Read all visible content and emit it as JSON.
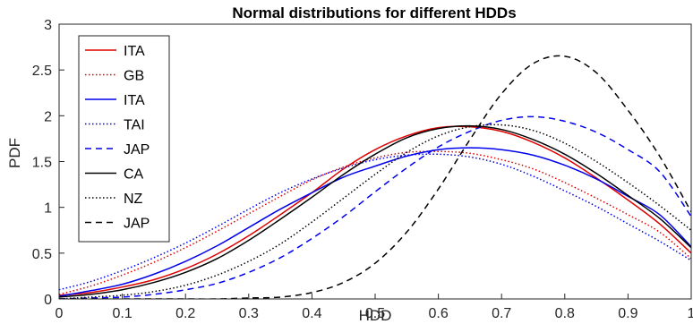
{
  "chart_data": {
    "type": "line",
    "title": "Normal distributions for different HDDs",
    "xlabel": "HDD",
    "ylabel": "PDF",
    "xlim": [
      0,
      1
    ],
    "ylim": [
      0,
      3
    ],
    "xticks": [
      "0",
      "0.1",
      "0.2",
      "0.3",
      "0.4",
      "0.5",
      "0.6",
      "0.7",
      "0.8",
      "0.9",
      "1"
    ],
    "yticks": [
      "0",
      "0.5",
      "1",
      "1.5",
      "2",
      "2.5",
      "3"
    ],
    "xtick_values": [
      0,
      0.1,
      0.2,
      0.3,
      0.4,
      0.5,
      0.6,
      0.7,
      0.8,
      0.9,
      1
    ],
    "ytick_values": [
      0,
      0.5,
      1,
      1.5,
      2,
      2.5,
      3
    ],
    "grid": false,
    "legend_position": "top-left",
    "x": [
      0,
      0.05,
      0.1,
      0.15,
      0.2,
      0.25,
      0.3,
      0.35,
      0.4,
      0.45,
      0.5,
      0.55,
      0.6,
      0.65,
      0.7,
      0.75,
      0.8,
      0.85,
      0.9,
      0.95,
      1
    ],
    "series": [
      {
        "name": "ITA",
        "color": "#e00000",
        "dash": "solid",
        "values": [
          0.04,
          0.07,
          0.13,
          0.21,
          0.33,
          0.49,
          0.69,
          0.92,
          1.16,
          1.42,
          1.63,
          1.78,
          1.87,
          1.88,
          1.83,
          1.71,
          1.54,
          1.32,
          1.08,
          0.82,
          0.5
        ]
      },
      {
        "name": "GB",
        "color": "#e00000",
        "dash": "dotted",
        "values": [
          0.05,
          0.14,
          0.26,
          0.4,
          0.56,
          0.74,
          0.93,
          1.12,
          1.3,
          1.44,
          1.54,
          1.6,
          1.61,
          1.59,
          1.52,
          1.42,
          1.27,
          1.1,
          0.92,
          0.73,
          0.44
        ]
      },
      {
        "name": "ITA",
        "color": "#0000ee",
        "dash": "solid",
        "values": [
          0.03,
          0.09,
          0.16,
          0.27,
          0.41,
          0.58,
          0.78,
          0.98,
          1.16,
          1.33,
          1.45,
          1.56,
          1.63,
          1.65,
          1.63,
          1.57,
          1.46,
          1.31,
          1.12,
          0.92,
          0.57
        ]
      },
      {
        "name": "TAI",
        "color": "#0000ee",
        "dash": "dotted",
        "values": [
          0.1,
          0.19,
          0.31,
          0.45,
          0.61,
          0.79,
          0.98,
          1.16,
          1.31,
          1.43,
          1.52,
          1.57,
          1.58,
          1.55,
          1.47,
          1.34,
          1.18,
          1.01,
          0.82,
          0.63,
          0.42
        ]
      },
      {
        "name": "JAP",
        "color": "#0000ee",
        "dash": "dashed",
        "values": [
          0.0,
          0.01,
          0.02,
          0.05,
          0.1,
          0.17,
          0.29,
          0.45,
          0.66,
          0.9,
          1.17,
          1.43,
          1.66,
          1.83,
          1.95,
          1.99,
          1.94,
          1.82,
          1.63,
          1.39,
          0.9
        ]
      },
      {
        "name": "CA",
        "color": "#000000",
        "dash": "solid",
        "values": [
          0.02,
          0.05,
          0.1,
          0.18,
          0.29,
          0.44,
          0.64,
          0.87,
          1.11,
          1.36,
          1.58,
          1.76,
          1.86,
          1.89,
          1.85,
          1.74,
          1.58,
          1.37,
          1.13,
          0.88,
          0.56
        ]
      },
      {
        "name": "NZ",
        "color": "#000000",
        "dash": "dotted",
        "values": [
          0.0,
          0.02,
          0.04,
          0.08,
          0.15,
          0.26,
          0.41,
          0.6,
          0.84,
          1.1,
          1.36,
          1.6,
          1.78,
          1.88,
          1.9,
          1.84,
          1.7,
          1.5,
          1.27,
          1.02,
          0.75
        ]
      },
      {
        "name": "JAP",
        "color": "#000000",
        "dash": "dashed",
        "values": [
          0.0,
          0.0,
          0.0,
          0.0,
          0.0,
          0.0,
          0.01,
          0.02,
          0.07,
          0.18,
          0.39,
          0.73,
          1.2,
          1.74,
          2.24,
          2.57,
          2.65,
          2.47,
          2.06,
          1.56,
          0.95
        ]
      }
    ]
  }
}
